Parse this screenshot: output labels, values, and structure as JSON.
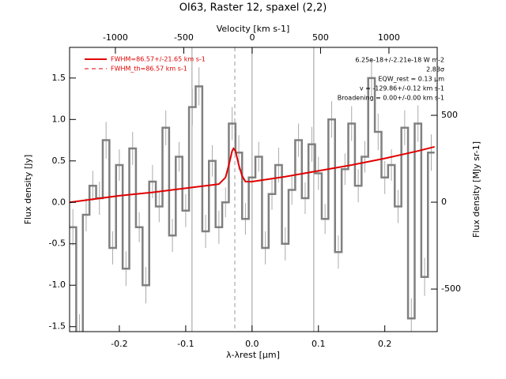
{
  "chart_data": {
    "type": "step",
    "title": "OI63, Raster 12, spaxel (2,2)",
    "xlabel": "λ-λrest [μm]",
    "ylabel": "Flux density [Jy]",
    "xlim": [
      -0.275,
      0.279
    ],
    "ylim": [
      -1.56,
      1.87
    ],
    "xticks": [
      -0.2,
      -0.1,
      {
        "value": 0,
        "label": "0.0"
      },
      0.1,
      0.2
    ],
    "yticks": [
      -1.5,
      {
        "value": -1,
        "label": "-1.0"
      },
      -0.5,
      {
        "value": 0,
        "label": "0.0"
      },
      0.5,
      {
        "value": 1,
        "label": "1.0"
      },
      1.5
    ],
    "top_axis": {
      "label": "Velocity [km s-1]",
      "xlim": [
        -1335,
        1353
      ],
      "xticks": [
        -1000,
        -500,
        0,
        500,
        1000
      ]
    },
    "right_axis": {
      "label": "Flux density [MJy sr-1]",
      "ylim": [
        -745,
        891
      ],
      "yticks": [
        -500,
        0,
        500
      ]
    },
    "spectrum": {
      "color": "#808080",
      "x": [
        -0.27,
        -0.26,
        -0.25,
        -0.24,
        -0.23,
        -0.22,
        -0.21,
        -0.2,
        -0.19,
        -0.18,
        -0.17,
        -0.16,
        -0.15,
        -0.14,
        -0.13,
        -0.12,
        -0.11,
        -0.1,
        -0.09,
        -0.08,
        -0.07,
        -0.06,
        -0.05,
        -0.04,
        -0.03,
        -0.02,
        -0.01,
        0,
        0.01,
        0.02,
        0.03,
        0.04,
        0.05,
        0.06,
        0.07,
        0.08,
        0.09,
        0.1,
        0.11,
        0.12,
        0.13,
        0.14,
        0.15,
        0.16,
        0.17,
        0.18,
        0.19,
        0.2,
        0.21,
        0.22,
        0.23,
        0.24,
        0.25,
        0.26,
        0.27
      ],
      "values": [
        -0.3,
        -1.6,
        -0.15,
        0.2,
        0.05,
        0.75,
        -0.55,
        0.45,
        -0.8,
        0.65,
        -0.3,
        -1.0,
        0.25,
        -0.05,
        0.9,
        -0.4,
        0.55,
        -0.1,
        1.15,
        1.4,
        -0.35,
        0.5,
        -0.3,
        0.0,
        0.95,
        0.6,
        -0.2,
        0.3,
        0.55,
        -0.55,
        0.1,
        0.45,
        -0.5,
        0.15,
        0.75,
        0.05,
        0.7,
        0.35,
        -0.2,
        1.0,
        -0.6,
        0.4,
        0.95,
        0.2,
        0.55,
        1.5,
        0.85,
        0.3,
        0.45,
        -0.05,
        0.9,
        -1.4,
        0.95,
        -0.9,
        0.6
      ],
      "errors": [
        0.22,
        0.25,
        0.2,
        0.18,
        0.2,
        0.22,
        0.2,
        0.19,
        0.21,
        0.2,
        0.18,
        0.22,
        0.2,
        0.19,
        0.21,
        0.2,
        0.18,
        0.2,
        0.22,
        0.23,
        0.2,
        0.19,
        0.2,
        0.18,
        0.2,
        0.21,
        0.19,
        0.2,
        0.18,
        0.2,
        0.19,
        0.21,
        0.2,
        0.18,
        0.2,
        0.19,
        0.21,
        0.2,
        0.18,
        0.22,
        0.2,
        0.19,
        0.21,
        0.2,
        0.19,
        0.24,
        0.22,
        0.2,
        0.19,
        0.2,
        0.21,
        0.24,
        0.22,
        0.23,
        0.22
      ]
    },
    "fit": {
      "name": "FWHM=86.57+/-21.65 km s-1",
      "color": "#e00000",
      "x": [
        -0.275,
        -0.2,
        -0.15,
        -0.1,
        -0.06,
        -0.05,
        -0.04,
        -0.035,
        -0.03,
        -0.028,
        -0.025,
        -0.02,
        -0.015,
        -0.01,
        0,
        0.05,
        0.1,
        0.15,
        0.2,
        0.25,
        0.275
      ],
      "values": [
        0.0,
        0.08,
        0.12,
        0.17,
        0.21,
        0.22,
        0.3,
        0.45,
        0.62,
        0.65,
        0.62,
        0.45,
        0.32,
        0.25,
        0.25,
        0.31,
        0.38,
        0.45,
        0.53,
        0.62,
        0.67
      ]
    },
    "fit_th": {
      "name": "FWHM_th=86.57 km s-1",
      "color": "#e00000",
      "x": -0.026
    },
    "vlines": [
      -0.0905,
      0,
      0.093
    ],
    "annotations": [
      "6.25e-18+/-2.21e-18 W m-2",
      "2.83σ",
      "EQW_rest = 0.13 μm",
      "v = -129.86+/-0.12 km s-1",
      "Broadening = 0.00+/-0.00 km s-1"
    ]
  }
}
